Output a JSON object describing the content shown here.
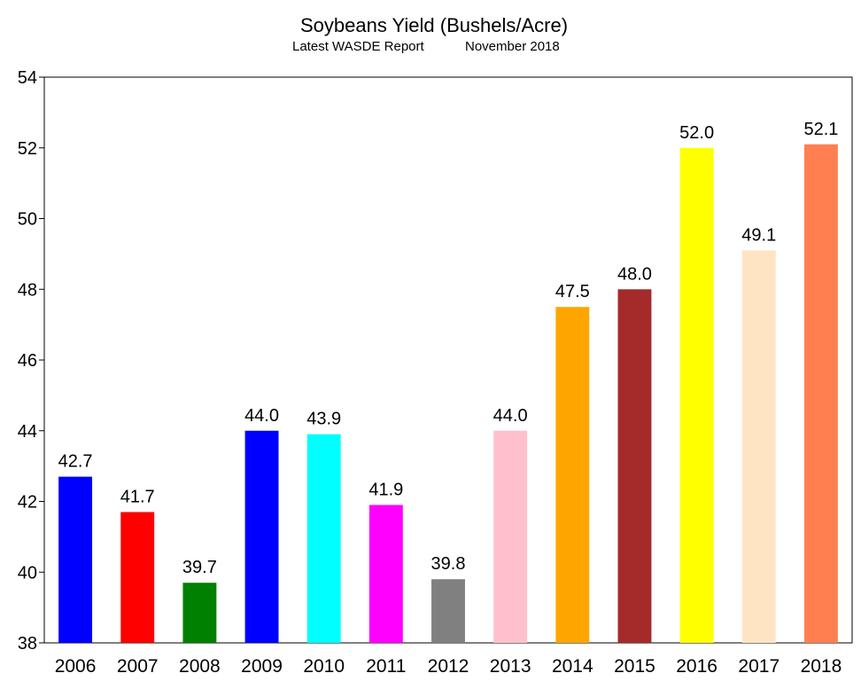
{
  "chart_data": {
    "type": "bar",
    "title": "Soybeans Yield (Bushels/Acre)",
    "subtitle_left": "Latest WASDE Report",
    "subtitle_right": "November 2018",
    "categories": [
      "2006",
      "2007",
      "2008",
      "2009",
      "2010",
      "2011",
      "2012",
      "2013",
      "2014",
      "2015",
      "2016",
      "2017",
      "2018"
    ],
    "values": [
      42.7,
      41.7,
      39.7,
      44.0,
      43.9,
      41.9,
      39.8,
      44.0,
      47.5,
      48.0,
      52.0,
      49.1,
      52.1
    ],
    "value_labels": [
      "42.7",
      "41.7",
      "39.7",
      "44.0",
      "43.9",
      "41.9",
      "39.8",
      "44.0",
      "47.5",
      "48.0",
      "52.0",
      "49.1",
      "52.1"
    ],
    "colors": [
      "#0000ff",
      "#ff0000",
      "#008000",
      "#0000ff",
      "#00ffff",
      "#ff00ff",
      "#808080",
      "#ffc0cb",
      "#ffa500",
      "#a52a2a",
      "#ffff00",
      "#ffe4c4",
      "#ff7f50"
    ],
    "ylim": [
      38,
      54
    ],
    "yticks": [
      "38",
      "40",
      "42",
      "44",
      "46",
      "48",
      "50",
      "52",
      "54"
    ],
    "xlabel": "",
    "ylabel": "",
    "grid": false,
    "legend": "none"
  }
}
